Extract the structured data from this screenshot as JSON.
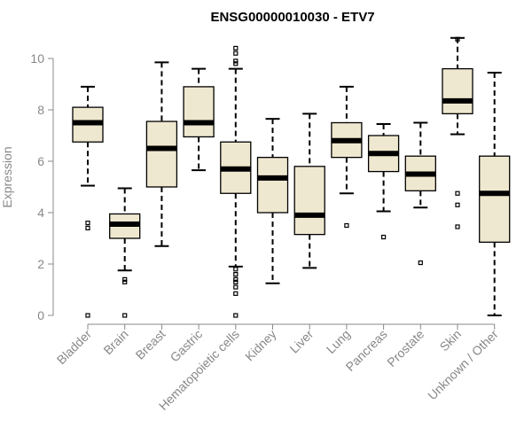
{
  "chart_data": {
    "type": "boxplot",
    "title": "ENSG00000010030 - ETV7",
    "xlabel": "",
    "ylabel": "Expression",
    "ylim": [
      0,
      10.5
    ],
    "yticks": [
      0,
      2,
      4,
      6,
      8,
      10
    ],
    "box_color": "#efe8d0",
    "categories": [
      "Bladder",
      "Brain",
      "Breast",
      "Gastric",
      "Hematopoietic cells",
      "Kidney",
      "Liver",
      "Lung",
      "Pancreas",
      "Prostate",
      "Skin",
      "Unknown / Other"
    ],
    "boxes": [
      {
        "label": "Bladder",
        "whisker_low": 5.05,
        "q1": 6.75,
        "median": 7.5,
        "q3": 8.1,
        "whisker_high": 8.9,
        "outliers": [
          3.6,
          3.4,
          0.0
        ]
      },
      {
        "label": "Brain",
        "whisker_low": 1.75,
        "q1": 3.0,
        "median": 3.55,
        "q3": 3.95,
        "whisker_high": 4.95,
        "outliers": [
          1.4,
          1.3,
          0.0
        ]
      },
      {
        "label": "Breast",
        "whisker_low": 2.7,
        "q1": 5.0,
        "median": 6.5,
        "q3": 7.55,
        "whisker_high": 9.85,
        "outliers": []
      },
      {
        "label": "Gastric",
        "whisker_low": 5.65,
        "q1": 6.95,
        "median": 7.5,
        "q3": 8.9,
        "whisker_high": 9.6,
        "outliers": []
      },
      {
        "label": "Hematopoietic cells",
        "whisker_low": 1.9,
        "q1": 4.75,
        "median": 5.7,
        "q3": 6.75,
        "whisker_high": 9.6,
        "outliers": [
          10.4,
          10.2,
          9.9,
          9.8,
          1.8,
          1.6,
          1.4,
          1.3,
          1.1,
          0.85,
          0.0
        ]
      },
      {
        "label": "Kidney",
        "whisker_low": 1.25,
        "q1": 4.0,
        "median": 5.35,
        "q3": 6.15,
        "whisker_high": 7.65,
        "outliers": []
      },
      {
        "label": "Liver",
        "whisker_low": 1.85,
        "q1": 3.15,
        "median": 3.9,
        "q3": 5.8,
        "whisker_high": 7.85,
        "outliers": []
      },
      {
        "label": "Lung",
        "whisker_low": 4.75,
        "q1": 6.15,
        "median": 6.8,
        "q3": 7.5,
        "whisker_high": 8.9,
        "outliers": [
          3.5
        ]
      },
      {
        "label": "Pancreas",
        "whisker_low": 4.05,
        "q1": 5.6,
        "median": 6.3,
        "q3": 7.0,
        "whisker_high": 7.45,
        "outliers": [
          3.05
        ]
      },
      {
        "label": "Prostate",
        "whisker_low": 4.2,
        "q1": 4.85,
        "median": 5.5,
        "q3": 6.2,
        "whisker_high": 7.5,
        "outliers": [
          2.05
        ]
      },
      {
        "label": "Skin",
        "whisker_low": 7.05,
        "q1": 7.85,
        "median": 8.35,
        "q3": 9.6,
        "whisker_high": 10.8,
        "outliers": [
          10.75,
          4.75,
          4.3,
          3.45
        ]
      },
      {
        "label": "Unknown / Other",
        "whisker_low": 0.0,
        "q1": 2.85,
        "median": 4.75,
        "q3": 6.2,
        "whisker_high": 9.45,
        "outliers": []
      }
    ]
  }
}
